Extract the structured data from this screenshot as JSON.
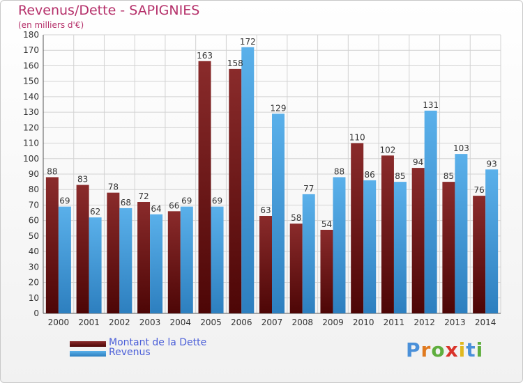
{
  "header": {
    "title": "Revenus/Dette - SAPIGNIES",
    "subtitle": "(en milliers d'€)"
  },
  "logo": {
    "text": "Proxiti",
    "letters": [
      {
        "ch": "P",
        "color": "#4a90d9"
      },
      {
        "ch": "r",
        "color": "#e07a1f"
      },
      {
        "ch": "o",
        "color": "#5fae3e"
      },
      {
        "ch": "x",
        "color": "#d9332a"
      },
      {
        "ch": "i",
        "color": "#e0b81f"
      },
      {
        "ch": "t",
        "color": "#4a90d9"
      },
      {
        "ch": "i",
        "color": "#5fae3e"
      }
    ]
  },
  "chart_data": {
    "type": "bar",
    "title": "Revenus/Dette - SAPIGNIES",
    "subtitle": "(en milliers d'€)",
    "categories": [
      "2000",
      "2001",
      "2002",
      "2003",
      "2004",
      "2005",
      "2006",
      "2007",
      "2008",
      "2009",
      "2010",
      "2011",
      "2012",
      "2013",
      "2014"
    ],
    "series": [
      {
        "name": "Montant de la Dette",
        "color": "#7a1f1f",
        "values": [
          88,
          83,
          78,
          72,
          66,
          163,
          158,
          63,
          58,
          54,
          110,
          102,
          94,
          85,
          76
        ]
      },
      {
        "name": "Revenus",
        "color": "#3a9ee0",
        "values": [
          69,
          62,
          68,
          64,
          69,
          69,
          172,
          129,
          77,
          88,
          86,
          85,
          131,
          103,
          93
        ]
      }
    ],
    "ylim": [
      0,
      180
    ],
    "yticks": [
      0,
      10,
      20,
      30,
      40,
      50,
      60,
      70,
      80,
      90,
      100,
      110,
      120,
      130,
      140,
      150,
      160,
      170,
      180
    ],
    "grid": true,
    "legend": "bottom-left"
  }
}
